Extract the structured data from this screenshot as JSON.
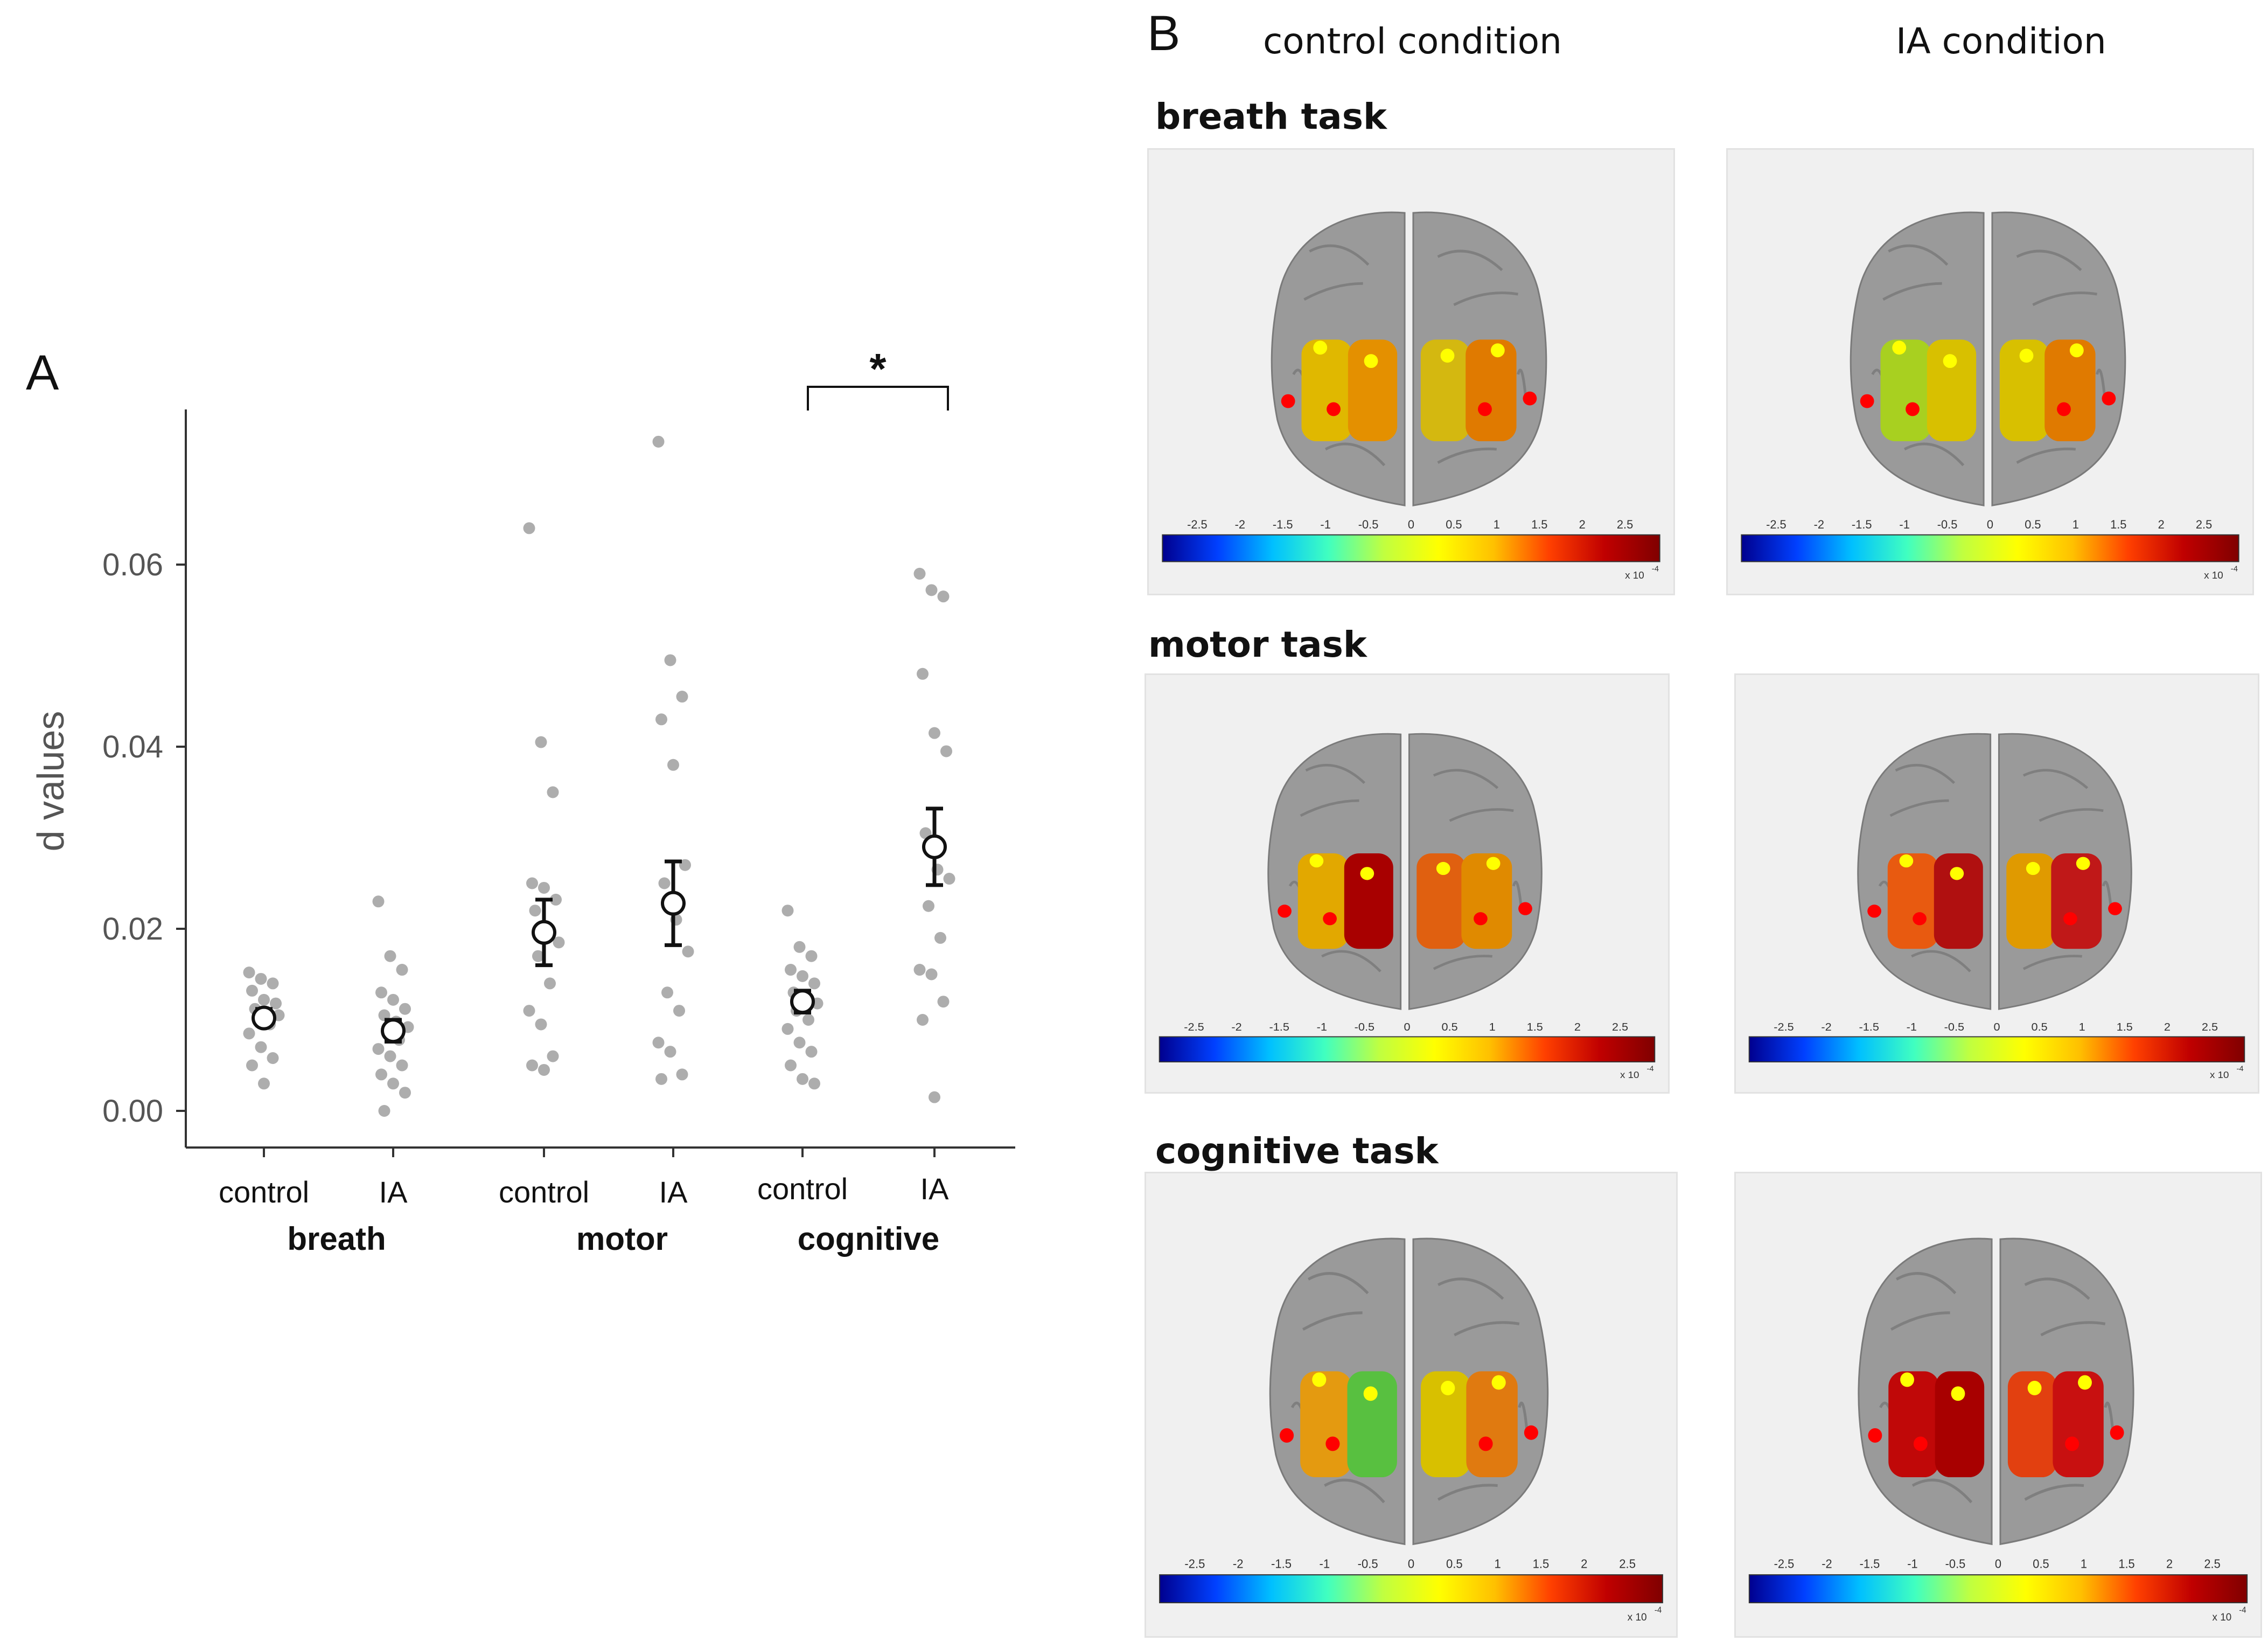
{
  "panel_a": {
    "label": "A",
    "significance_marker": "*",
    "chart_data": {
      "type": "scatter",
      "ylabel": "d values",
      "ylim": [
        -0.004,
        0.077
      ],
      "yticks": [
        0.0,
        0.02,
        0.04,
        0.06
      ],
      "ytick_labels": [
        "0.00",
        "0.02",
        "0.04",
        "0.06"
      ],
      "groups": [
        {
          "task": "breath",
          "condition": "control",
          "label": "control",
          "mean": 0.0102,
          "err_low": 0.0094,
          "err_high": 0.0112,
          "points": [
            0.0152,
            0.0145,
            0.014,
            0.0132,
            0.0122,
            0.0118,
            0.0112,
            0.0108,
            0.0105,
            0.01,
            0.0095,
            0.0085,
            0.007,
            0.0058,
            0.005,
            0.003
          ]
        },
        {
          "task": "breath",
          "condition": "IA",
          "label": "IA",
          "mean": 0.0088,
          "err_low": 0.0076,
          "err_high": 0.01,
          "points": [
            0.023,
            0.017,
            0.0155,
            0.013,
            0.0122,
            0.0112,
            0.0105,
            0.0098,
            0.0092,
            0.0085,
            0.0078,
            0.0068,
            0.006,
            0.005,
            0.004,
            0.003,
            0.002,
            0.0
          ]
        },
        {
          "task": "motor",
          "condition": "control",
          "label": "control",
          "mean": 0.0196,
          "err_low": 0.016,
          "err_high": 0.0232,
          "points": [
            0.064,
            0.0405,
            0.035,
            0.025,
            0.0245,
            0.0232,
            0.022,
            0.02,
            0.0185,
            0.017,
            0.014,
            0.011,
            0.0095,
            0.006,
            0.005,
            0.0045
          ]
        },
        {
          "task": "motor",
          "condition": "IA",
          "label": "IA",
          "mean": 0.0228,
          "err_low": 0.0182,
          "err_high": 0.0274,
          "points": [
            0.0735,
            0.0495,
            0.0455,
            0.043,
            0.038,
            0.027,
            0.025,
            0.021,
            0.0175,
            0.013,
            0.011,
            0.0075,
            0.0065,
            0.004,
            0.0035
          ]
        },
        {
          "task": "cognitive",
          "condition": "control",
          "label": "control",
          "mean": 0.012,
          "err_low": 0.0108,
          "err_high": 0.0132,
          "points": [
            0.022,
            0.018,
            0.017,
            0.0155,
            0.0148,
            0.014,
            0.013,
            0.0125,
            0.0118,
            0.011,
            0.01,
            0.009,
            0.0075,
            0.0065,
            0.005,
            0.0035,
            0.003
          ]
        },
        {
          "task": "cognitive",
          "condition": "IA",
          "label": "IA",
          "mean": 0.029,
          "err_low": 0.0248,
          "err_high": 0.0332,
          "points": [
            0.059,
            0.0572,
            0.0565,
            0.048,
            0.0415,
            0.0395,
            0.0305,
            0.0265,
            0.0255,
            0.0225,
            0.019,
            0.0155,
            0.015,
            0.012,
            0.01,
            0.0015
          ]
        }
      ],
      "task_labels": [
        "breath",
        "motor",
        "cognitive"
      ],
      "significance": {
        "between": [
          4,
          5
        ],
        "marker": "*"
      }
    }
  },
  "panel_b": {
    "label": "B",
    "columns": [
      "control condition",
      "IA condition"
    ],
    "tasks": [
      {
        "title": "breath task",
        "maps": [
          {
            "condition": "control",
            "left": [
              "#e0b800",
              "#e49000"
            ],
            "right": [
              "#d4b810",
              "#e07a00"
            ]
          },
          {
            "condition": "IA",
            "left": [
              "#a8d020",
              "#d8c000"
            ],
            "right": [
              "#d8c000",
              "#e07a00"
            ]
          }
        ]
      },
      {
        "title": "motor task",
        "maps": [
          {
            "condition": "control",
            "left": [
              "#e2a800",
              "#a80000"
            ],
            "right": [
              "#e06010",
              "#e08a00"
            ]
          },
          {
            "condition": "IA",
            "left": [
              "#e85a10",
              "#b01010"
            ],
            "right": [
              "#e09a00",
              "#c01818"
            ]
          }
        ]
      },
      {
        "title": "cognitive task",
        "maps": [
          {
            "condition": "control",
            "left": [
              "#e49a10",
              "#58c040"
            ],
            "right": [
              "#d8c000",
              "#e07a10"
            ]
          },
          {
            "condition": "IA",
            "left": [
              "#c00808",
              "#a80000"
            ],
            "right": [
              "#e24010",
              "#c81010"
            ]
          }
        ]
      }
    ],
    "colorbar": {
      "ticks": [
        "-2.5",
        "-2",
        "-1.5",
        "-1",
        "-0.5",
        "0",
        "0.5",
        "1",
        "1.5",
        "2",
        "2.5"
      ],
      "multiplier": "x 10",
      "exponent": "-4",
      "colors": [
        "#00008f",
        "#0040ff",
        "#00c0ff",
        "#40ffc0",
        "#c0ff40",
        "#ffff00",
        "#ffc000",
        "#ff4000",
        "#c00000",
        "#800000"
      ]
    }
  }
}
